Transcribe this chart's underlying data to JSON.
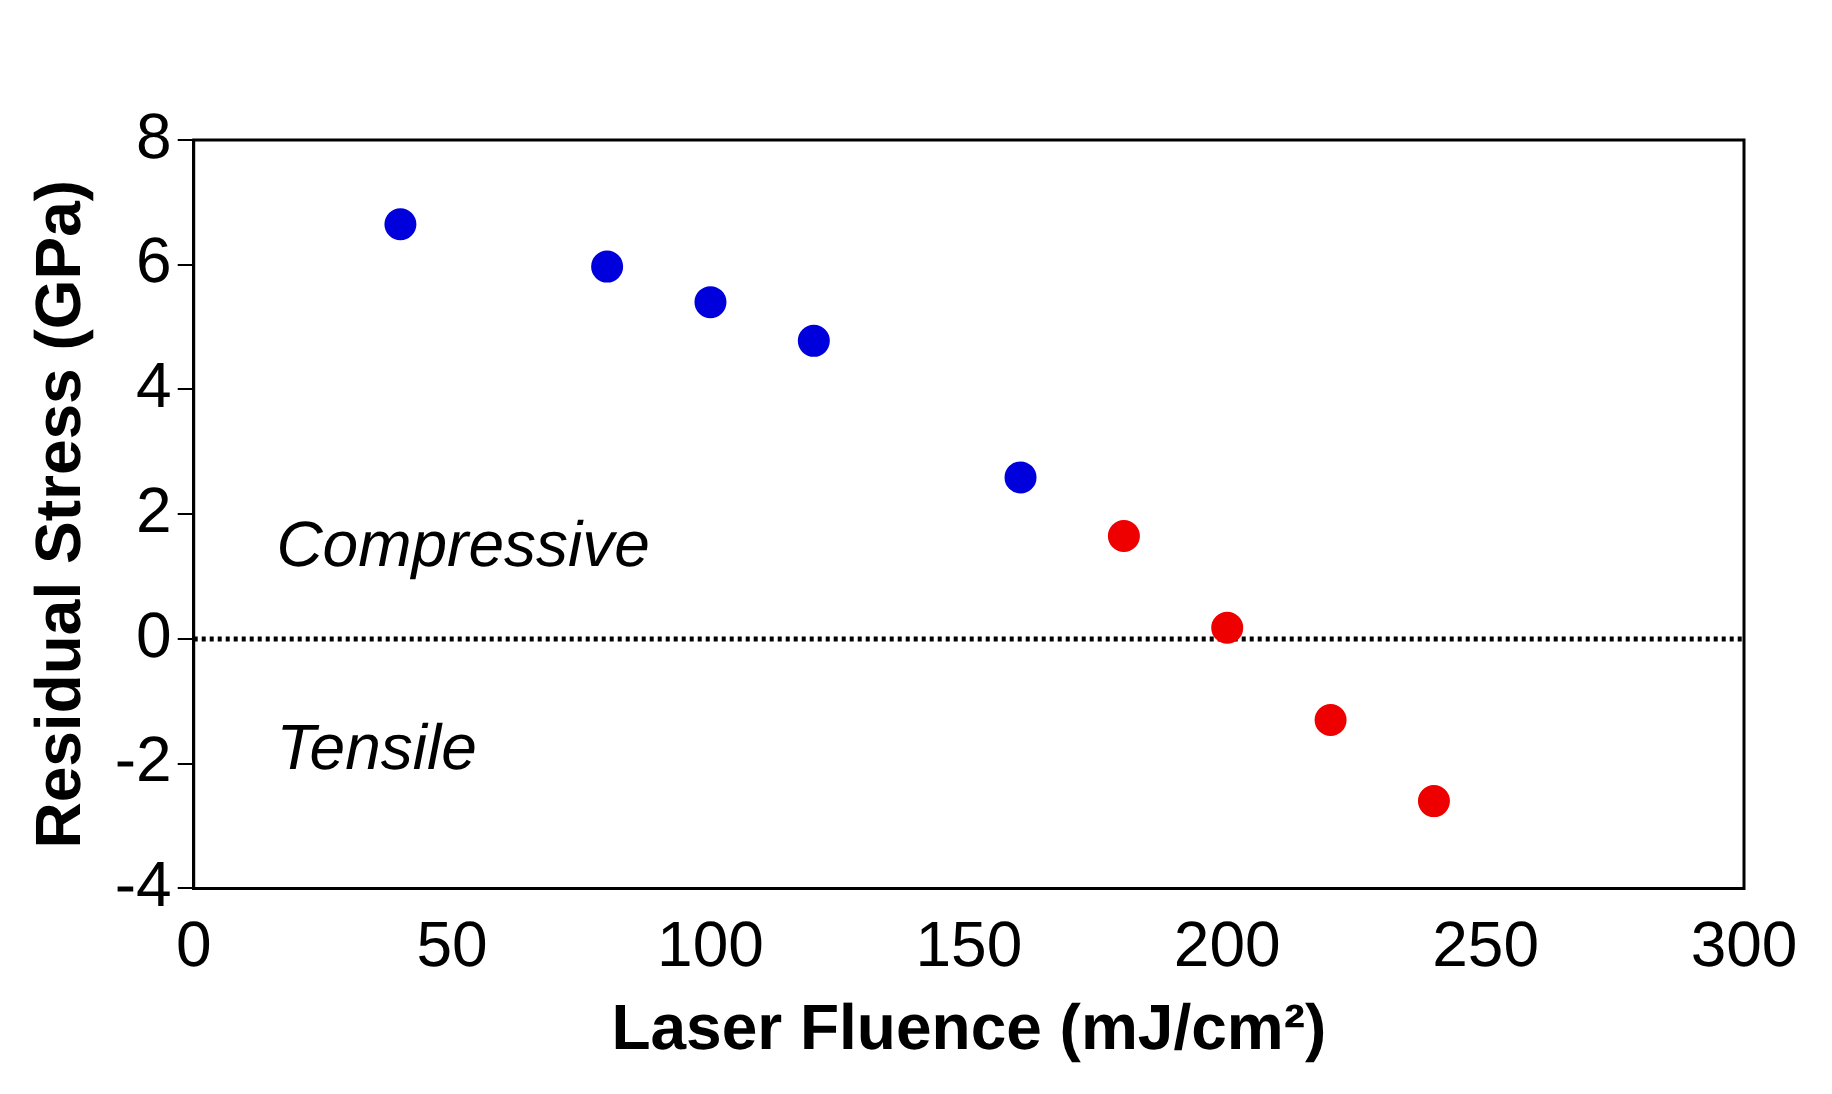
{
  "chart_data": {
    "type": "scatter",
    "xlabel": "Laser Fluence (mJ/cm²)",
    "ylabel": "Residual Stress (GPa)",
    "xlim": [
      0,
      300
    ],
    "xticks": [
      0,
      50,
      100,
      150,
      200,
      250,
      300
    ],
    "ylim": [
      -4,
      8
    ],
    "yticks": [
      -4,
      -2,
      0,
      2,
      4,
      6,
      8
    ],
    "series": [
      {
        "color": "#0000dd",
        "x": [
          40,
          80,
          100,
          120,
          160
        ],
        "values": [
          6.65,
          5.97,
          5.4,
          4.78,
          2.59
        ]
      },
      {
        "color": "#ee0000",
        "x": [
          180,
          200,
          220,
          240
        ],
        "values": [
          1.65,
          0.18,
          -1.3,
          -2.6
        ]
      }
    ],
    "ref_lines": [
      {
        "axis": "y",
        "value": 0,
        "color": "#000000",
        "line_style": "dotted"
      }
    ],
    "annotations": [
      "Compressive",
      "Tensile"
    ],
    "marker": "circle",
    "grid": false,
    "legend": false
  }
}
